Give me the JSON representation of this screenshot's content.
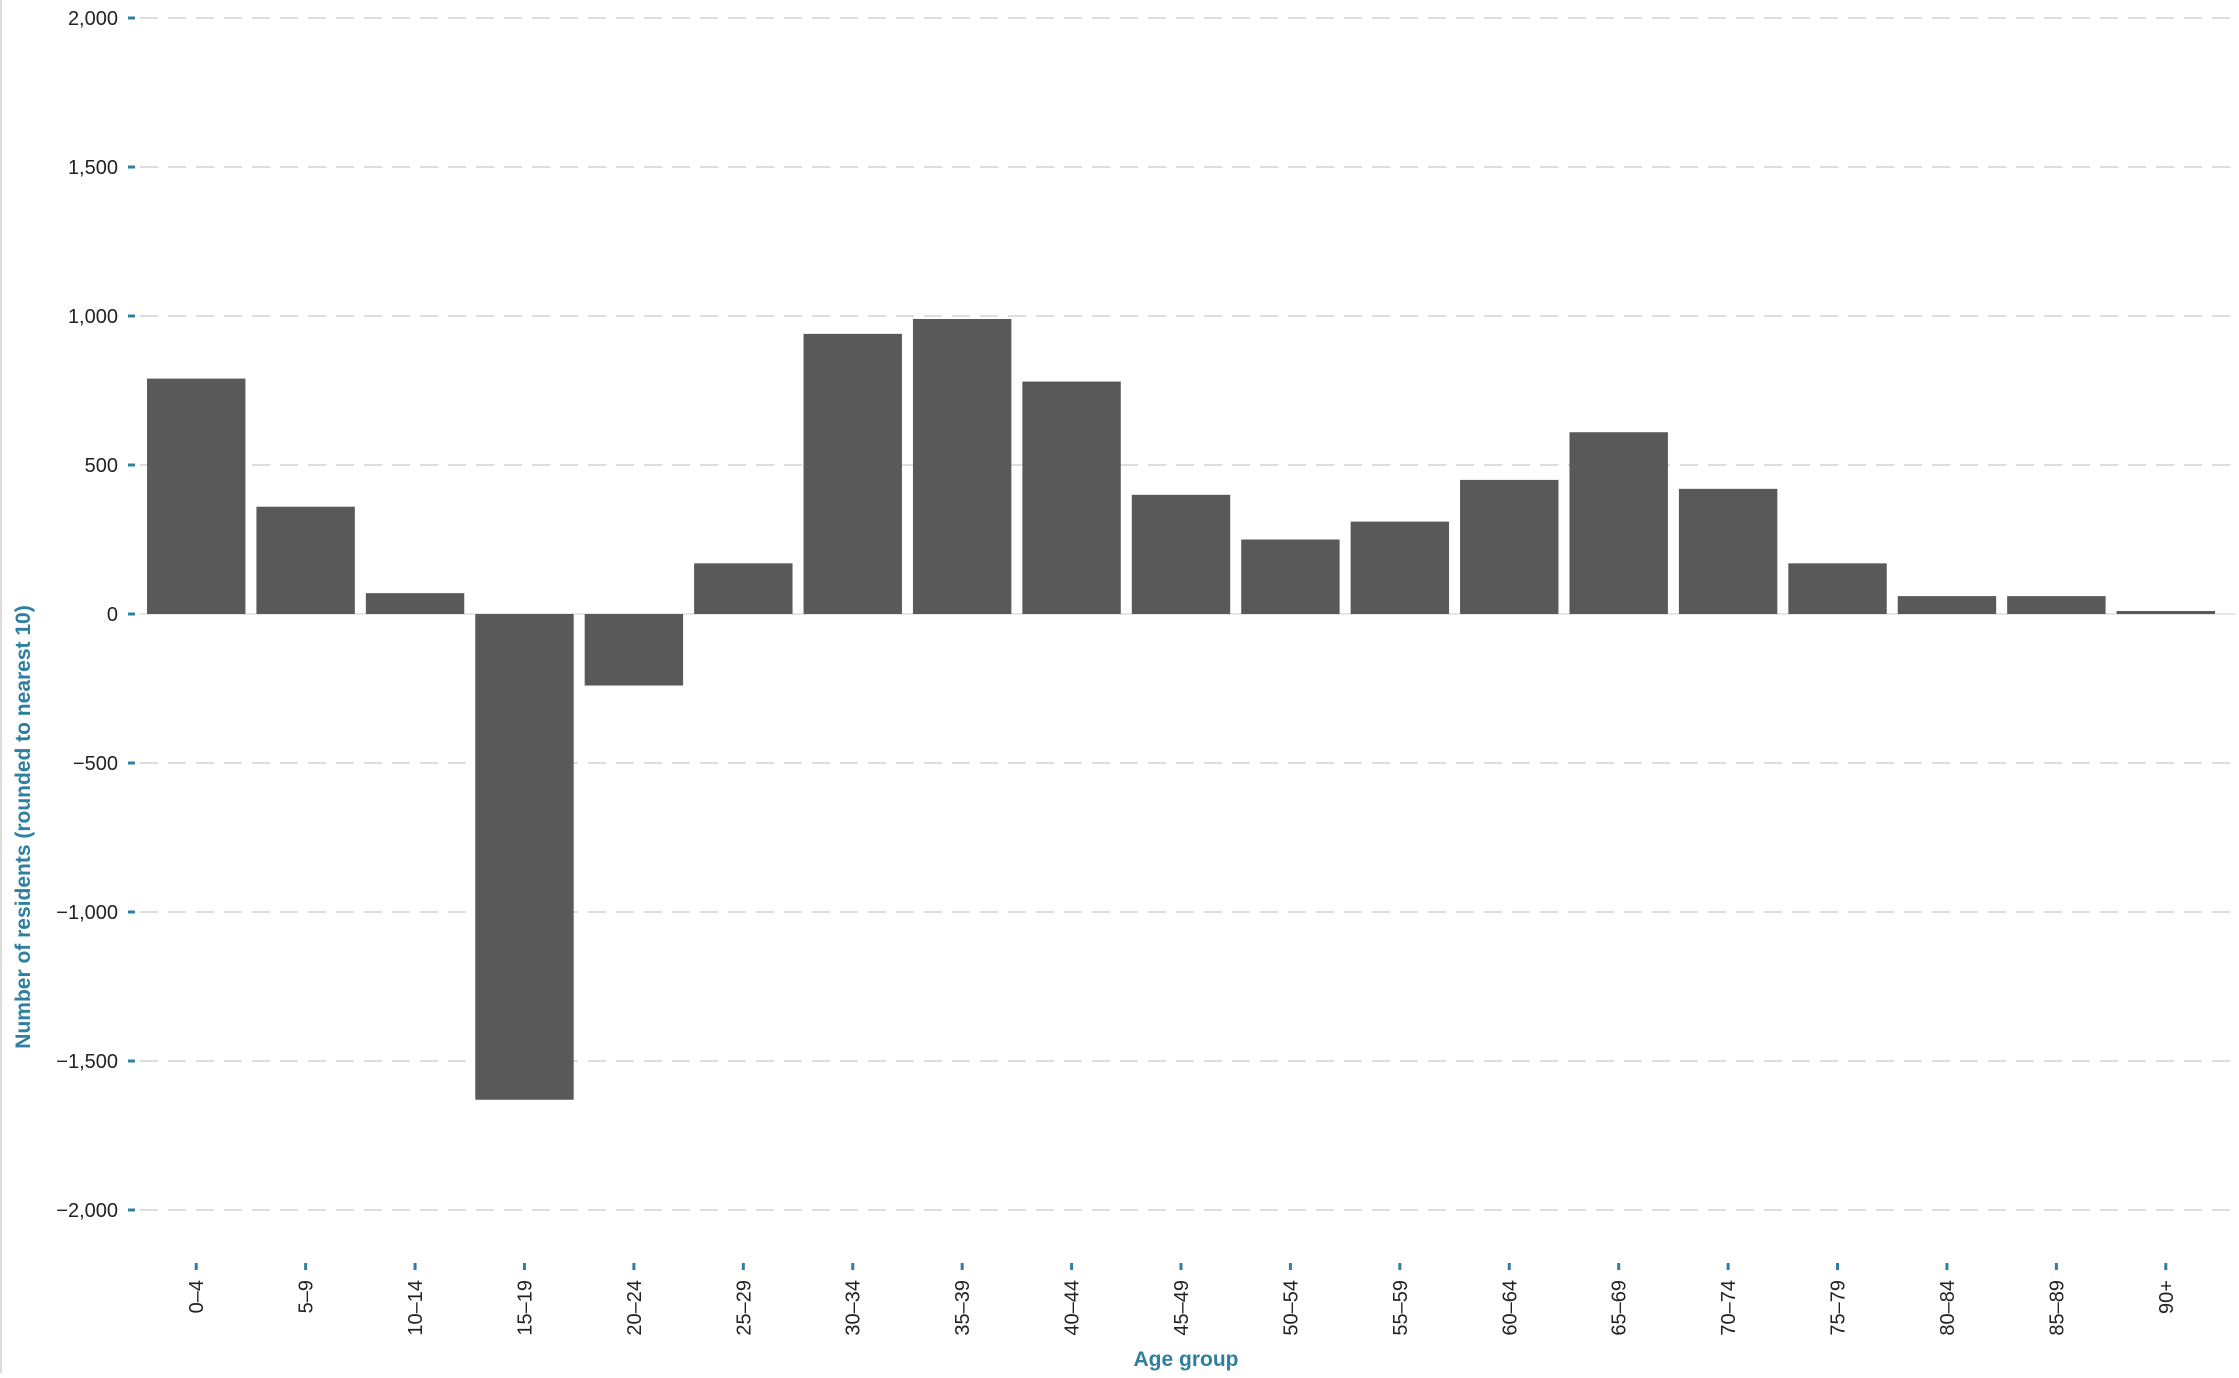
{
  "chart_data": {
    "type": "bar",
    "title": "",
    "xlabel": "Age group",
    "ylabel": "Number of residents (rounded to nearest 10)",
    "categories": [
      "0–4",
      "5–9",
      "10–14",
      "15–19",
      "20–24",
      "25–29",
      "30–34",
      "35–39",
      "40–44",
      "45–49",
      "50–54",
      "55–59",
      "60–64",
      "65–69",
      "70–74",
      "75–79",
      "80–84",
      "85–89",
      "90+"
    ],
    "values": [
      790,
      360,
      70,
      -1630,
      -240,
      170,
      940,
      990,
      780,
      400,
      250,
      310,
      450,
      610,
      420,
      170,
      60,
      60,
      10
    ],
    "ylim": [
      -2000,
      2000
    ],
    "yticks": [
      2000,
      1500,
      1000,
      500,
      0,
      -500,
      -1000,
      -1500,
      -2000
    ],
    "ytick_labels": [
      "2,000",
      "1,500",
      "1,000",
      "500",
      "0",
      "−500",
      "−1,000",
      "−1,500",
      "−2,000"
    ],
    "grid": true,
    "colors": {
      "bar": "#595959",
      "axis_title": "#2f7fa0",
      "tick_mark": "#2f7fa0",
      "grid": "#dddddd",
      "zero_line": "#e6e6e6"
    }
  }
}
